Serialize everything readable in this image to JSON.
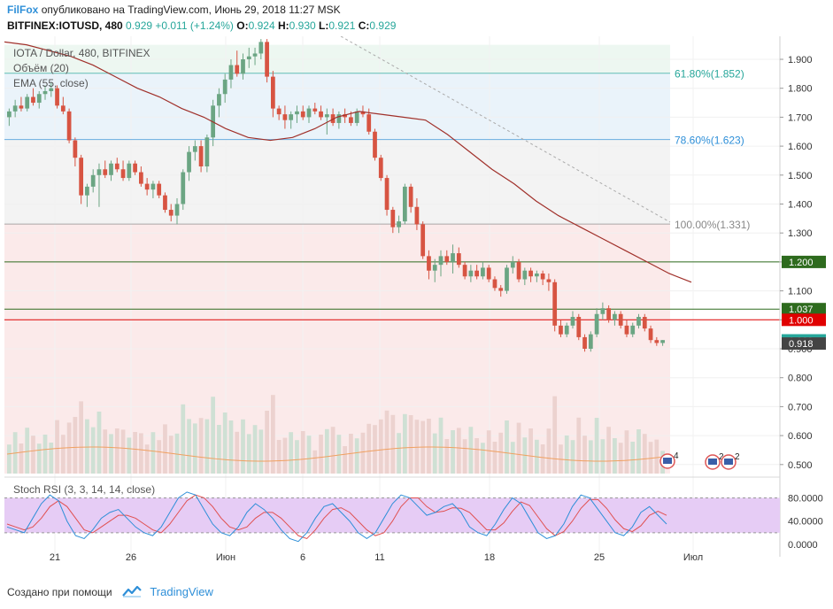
{
  "header": {
    "brand": "FilFox",
    "published": "опубликовано на TradingView.com, Июнь 29, 2018 11:27 MSK",
    "symbol": "BITFINEX:IOTUSD, 480",
    "last": "0.929",
    "change": "+0.011 (+1.24%)",
    "o_label": "O:",
    "o": "0.924",
    "h_label": "H:",
    "h": "0.930",
    "l_label": "L:",
    "l": "0.921",
    "c_label": "C:",
    "c": "0.929"
  },
  "legend": {
    "title": "IOTA / Dollar, 480, BITFINEX",
    "volume": "Объём (20)",
    "ema": "EMA (55, close)"
  },
  "fib_levels": [
    {
      "label": "61.80%(1.852)",
      "value": 1.852,
      "color": "#26a69a"
    },
    {
      "label": "78.60%(1.623)",
      "value": 1.623,
      "color": "#2e8fd8"
    },
    {
      "label": "100.00%(1.331)",
      "value": 1.331,
      "color": "#888888"
    }
  ],
  "horizontal_levels": [
    {
      "value": 1.2,
      "label": "1.200",
      "color": "#2e6b1e"
    },
    {
      "value": 1.037,
      "label": "1.037",
      "color": "#2e6b1e"
    },
    {
      "value": 1.0,
      "label": "1.000",
      "color": "#e00000"
    }
  ],
  "price_tags": [
    {
      "value": 0.929,
      "label": "0.929",
      "color": "#26a69a"
    },
    {
      "value": 0.918,
      "label": "0.918",
      "color": "#444444"
    }
  ],
  "stoch": {
    "title": "Stoch RSI (3, 3, 14, 14, close)",
    "band_upper": 80,
    "band_lower": 20,
    "axis_labels": [
      "80.0000",
      "40.0000",
      "0.0000"
    ]
  },
  "events": [
    {
      "badge": "4"
    },
    {
      "badge": "2"
    },
    {
      "badge": "2"
    }
  ],
  "footer": {
    "created": "Создано при помощи",
    "tradingview": "TradingView"
  },
  "chart_data": {
    "type": "candlestick",
    "price_axis": {
      "ticks": [
        "1.900",
        "1.800",
        "1.700",
        "1.600",
        "1.500",
        "1.400",
        "1.300",
        "1.200",
        "1.100",
        "1.000",
        "0.900",
        "0.800",
        "0.700",
        "0.600",
        "0.500"
      ],
      "ylim": [
        0.5,
        1.95
      ]
    },
    "time_axis": {
      "ticks": [
        "21",
        "26",
        "Июн",
        "6",
        "11",
        "18",
        "25",
        "Июл"
      ]
    },
    "colors": {
      "up": "#6ba583",
      "down": "#d75442",
      "ema": "#a0302a",
      "volume": "#c9c9c9",
      "volume_ma": "#f0a060",
      "stoch_k": "#2e8fd8",
      "stoch_d": "#e05050",
      "stoch_band": "#e6ccf5"
    },
    "ohlc": [
      [
        1.7,
        1.73,
        1.67,
        1.72
      ],
      [
        1.72,
        1.76,
        1.7,
        1.74
      ],
      [
        1.74,
        1.77,
        1.72,
        1.73
      ],
      [
        1.73,
        1.78,
        1.72,
        1.77
      ],
      [
        1.77,
        1.8,
        1.74,
        1.75
      ],
      [
        1.75,
        1.79,
        1.73,
        1.78
      ],
      [
        1.78,
        1.81,
        1.76,
        1.79
      ],
      [
        1.79,
        1.82,
        1.77,
        1.8
      ],
      [
        1.8,
        1.81,
        1.73,
        1.74
      ],
      [
        1.74,
        1.77,
        1.71,
        1.72
      ],
      [
        1.72,
        1.73,
        1.61,
        1.62
      ],
      [
        1.62,
        1.63,
        1.53,
        1.56
      ],
      [
        1.56,
        1.57,
        1.4,
        1.43
      ],
      [
        1.43,
        1.47,
        1.39,
        1.46
      ],
      [
        1.46,
        1.52,
        1.44,
        1.5
      ],
      [
        1.5,
        1.54,
        1.39,
        1.52
      ],
      [
        1.52,
        1.55,
        1.49,
        1.5
      ],
      [
        1.5,
        1.55,
        1.48,
        1.54
      ],
      [
        1.54,
        1.56,
        1.51,
        1.52
      ],
      [
        1.52,
        1.55,
        1.48,
        1.49
      ],
      [
        1.49,
        1.55,
        1.48,
        1.54
      ],
      [
        1.54,
        1.55,
        1.5,
        1.51
      ],
      [
        1.51,
        1.53,
        1.46,
        1.47
      ],
      [
        1.47,
        1.49,
        1.43,
        1.45
      ],
      [
        1.45,
        1.48,
        1.42,
        1.47
      ],
      [
        1.47,
        1.48,
        1.42,
        1.43
      ],
      [
        1.43,
        1.44,
        1.37,
        1.38
      ],
      [
        1.38,
        1.4,
        1.34,
        1.36
      ],
      [
        1.36,
        1.42,
        1.33,
        1.4
      ],
      [
        1.4,
        1.52,
        1.38,
        1.51
      ],
      [
        1.51,
        1.6,
        1.48,
        1.58
      ],
      [
        1.58,
        1.62,
        1.55,
        1.6
      ],
      [
        1.6,
        1.62,
        1.51,
        1.53
      ],
      [
        1.53,
        1.64,
        1.51,
        1.63
      ],
      [
        1.63,
        1.76,
        1.6,
        1.74
      ],
      [
        1.74,
        1.8,
        1.7,
        1.78
      ],
      [
        1.78,
        1.85,
        1.75,
        1.83
      ],
      [
        1.83,
        1.9,
        1.8,
        1.88
      ],
      [
        1.88,
        1.93,
        1.84,
        1.85
      ],
      [
        1.85,
        1.92,
        1.83,
        1.9
      ],
      [
        1.9,
        1.94,
        1.87,
        1.91
      ],
      [
        1.91,
        1.94,
        1.88,
        1.92
      ],
      [
        1.92,
        1.97,
        1.9,
        1.96
      ],
      [
        1.96,
        1.97,
        1.82,
        1.84
      ],
      [
        1.84,
        1.86,
        1.7,
        1.73
      ],
      [
        1.73,
        1.74,
        1.69,
        1.71
      ],
      [
        1.71,
        1.74,
        1.66,
        1.69
      ],
      [
        1.69,
        1.72,
        1.66,
        1.71
      ],
      [
        1.71,
        1.74,
        1.68,
        1.72
      ],
      [
        1.72,
        1.74,
        1.69,
        1.7
      ],
      [
        1.7,
        1.74,
        1.68,
        1.73
      ],
      [
        1.73,
        1.75,
        1.71,
        1.72
      ],
      [
        1.72,
        1.74,
        1.69,
        1.7
      ],
      [
        1.7,
        1.73,
        1.64,
        1.71
      ],
      [
        1.71,
        1.73,
        1.67,
        1.68
      ],
      [
        1.68,
        1.72,
        1.66,
        1.71
      ],
      [
        1.71,
        1.73,
        1.68,
        1.7
      ],
      [
        1.7,
        1.72,
        1.67,
        1.68
      ],
      [
        1.68,
        1.73,
        1.67,
        1.72
      ],
      [
        1.72,
        1.74,
        1.7,
        1.71
      ],
      [
        1.71,
        1.73,
        1.64,
        1.65
      ],
      [
        1.65,
        1.66,
        1.55,
        1.56
      ],
      [
        1.56,
        1.57,
        1.48,
        1.49
      ],
      [
        1.49,
        1.5,
        1.36,
        1.38
      ],
      [
        1.38,
        1.39,
        1.3,
        1.32
      ],
      [
        1.32,
        1.36,
        1.3,
        1.34
      ],
      [
        1.34,
        1.47,
        1.33,
        1.46
      ],
      [
        1.46,
        1.47,
        1.37,
        1.39
      ],
      [
        1.39,
        1.42,
        1.31,
        1.33
      ],
      [
        1.33,
        1.34,
        1.21,
        1.22
      ],
      [
        1.22,
        1.24,
        1.14,
        1.17
      ],
      [
        1.17,
        1.21,
        1.13,
        1.19
      ],
      [
        1.19,
        1.24,
        1.15,
        1.22
      ],
      [
        1.22,
        1.24,
        1.19,
        1.2
      ],
      [
        1.2,
        1.26,
        1.16,
        1.23
      ],
      [
        1.23,
        1.25,
        1.18,
        1.19
      ],
      [
        1.19,
        1.2,
        1.14,
        1.15
      ],
      [
        1.15,
        1.19,
        1.13,
        1.17
      ],
      [
        1.17,
        1.19,
        1.14,
        1.15
      ],
      [
        1.15,
        1.2,
        1.14,
        1.18
      ],
      [
        1.18,
        1.19,
        1.13,
        1.14
      ],
      [
        1.14,
        1.15,
        1.1,
        1.11
      ],
      [
        1.11,
        1.12,
        1.08,
        1.1
      ],
      [
        1.1,
        1.19,
        1.09,
        1.18
      ],
      [
        1.18,
        1.22,
        1.16,
        1.2
      ],
      [
        1.2,
        1.21,
        1.13,
        1.14
      ],
      [
        1.14,
        1.18,
        1.12,
        1.17
      ],
      [
        1.17,
        1.18,
        1.13,
        1.15
      ],
      [
        1.15,
        1.17,
        1.13,
        1.16
      ],
      [
        1.16,
        1.17,
        1.12,
        1.14
      ],
      [
        1.14,
        1.16,
        1.1,
        1.13
      ],
      [
        1.13,
        1.14,
        0.96,
        0.98
      ],
      [
        0.98,
        1.0,
        0.94,
        0.95
      ],
      [
        0.95,
        0.99,
        0.94,
        0.98
      ],
      [
        0.98,
        1.03,
        0.97,
        1.01
      ],
      [
        1.01,
        1.02,
        0.93,
        0.94
      ],
      [
        0.94,
        0.95,
        0.89,
        0.9
      ],
      [
        0.9,
        0.96,
        0.89,
        0.95
      ],
      [
        0.95,
        1.04,
        0.94,
        1.02
      ],
      [
        1.02,
        1.06,
        1.0,
        1.04
      ],
      [
        1.04,
        1.05,
        0.99,
        1.0
      ],
      [
        1.0,
        1.03,
        0.98,
        1.02
      ],
      [
        1.02,
        1.03,
        0.97,
        0.98
      ],
      [
        0.98,
        1.0,
        0.94,
        0.95
      ],
      [
        0.95,
        0.99,
        0.94,
        0.98
      ],
      [
        0.98,
        1.02,
        0.97,
        1.01
      ],
      [
        1.01,
        1.02,
        0.96,
        0.97
      ],
      [
        0.97,
        0.98,
        0.92,
        0.93
      ],
      [
        0.93,
        0.94,
        0.91,
        0.92
      ],
      [
        0.92,
        0.93,
        0.91,
        0.93
      ]
    ],
    "ema": [
      1.96,
      1.95,
      1.93,
      1.91,
      1.88,
      1.84,
      1.8,
      1.77,
      1.73,
      1.7,
      1.66,
      1.63,
      1.62,
      1.63,
      1.66,
      1.7,
      1.72,
      1.71,
      1.7,
      1.69,
      1.64,
      1.58,
      1.52,
      1.47,
      1.41,
      1.36,
      1.32,
      1.28,
      1.24,
      1.2,
      1.16,
      1.13
    ],
    "stoch_k": [
      30,
      25,
      20,
      45,
      70,
      85,
      75,
      40,
      15,
      10,
      25,
      45,
      55,
      60,
      45,
      30,
      20,
      15,
      30,
      55,
      80,
      90,
      85,
      60,
      35,
      20,
      15,
      30,
      55,
      70,
      60,
      45,
      25,
      10,
      5,
      20,
      45,
      65,
      70,
      55,
      40,
      20,
      10,
      20,
      45,
      70,
      85,
      80,
      65,
      50,
      55,
      65,
      70,
      55,
      30,
      20,
      15,
      35,
      60,
      80,
      70,
      45,
      20,
      10,
      15,
      35,
      65,
      85,
      80,
      60,
      40,
      20,
      15,
      30,
      55,
      65,
      50,
      35
    ],
    "stoch_d": [
      35,
      30,
      25,
      30,
      45,
      65,
      75,
      65,
      45,
      25,
      20,
      30,
      40,
      50,
      50,
      45,
      35,
      25,
      20,
      35,
      55,
      75,
      85,
      80,
      65,
      45,
      30,
      25,
      30,
      45,
      55,
      55,
      45,
      30,
      15,
      10,
      25,
      45,
      60,
      63,
      55,
      40,
      25,
      15,
      20,
      40,
      65,
      80,
      80,
      65,
      55,
      57,
      63,
      62,
      55,
      40,
      25,
      25,
      37,
      57,
      73,
      67,
      47,
      27,
      15,
      22,
      40,
      62,
      77,
      77,
      62,
      42,
      27,
      22,
      32,
      50,
      57,
      50
    ]
  }
}
